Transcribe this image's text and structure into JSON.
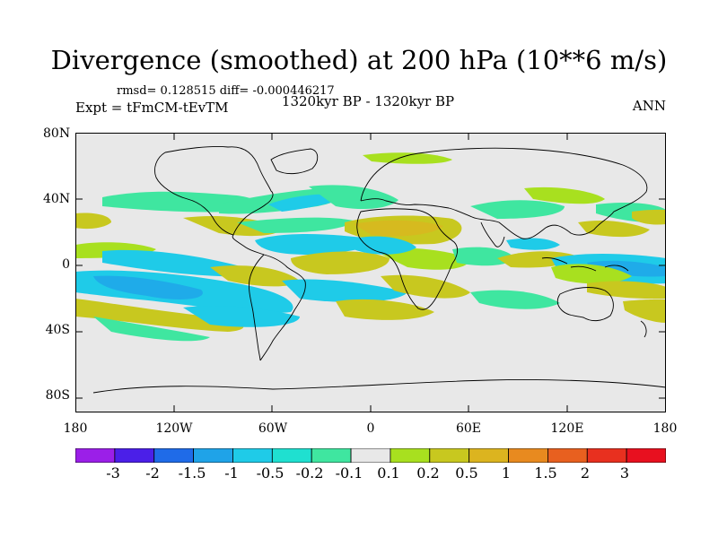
{
  "title": "Divergence (smoothed) at 200 hPa (10**6 m/s)",
  "stats": "rmsd= 0.128515 diff= -0.000446217",
  "experiment": "Expt = tFmCM-tEvTM",
  "period": "1320kyr BP - 1320kyr BP",
  "season": "ANN",
  "lat_ticks": [
    "80N",
    "40N",
    "0",
    "40S",
    "80S"
  ],
  "lon_ticks": [
    "180",
    "120W",
    "60W",
    "0",
    "60E",
    "120E",
    "180"
  ],
  "colorbar": {
    "labels": [
      "-3",
      "-2",
      "-1.5",
      "-1",
      "-0.5",
      "-0.2",
      "-0.1",
      "0.1",
      "0.2",
      "0.5",
      "1",
      "1.5",
      "2",
      "3"
    ],
    "colors": [
      "#9b1fe8",
      "#4b1fe8",
      "#1f6be8",
      "#1fa3e8",
      "#1fcbe8",
      "#1fe0d0",
      "#3fe6a0",
      "#e8e8e8",
      "#a8e01f",
      "#c8c81f",
      "#dcb41f",
      "#e88a1f",
      "#e8601f",
      "#e8301f",
      "#e8101f"
    ]
  },
  "fields": {
    "colors": {
      "background": "#e8e8e8",
      "neg_weak": "#3fe6a0",
      "neg_mid": "#1fcbe8",
      "pos_weak": "#a8e01f",
      "pos_mid": "#c8c81f"
    }
  }
}
